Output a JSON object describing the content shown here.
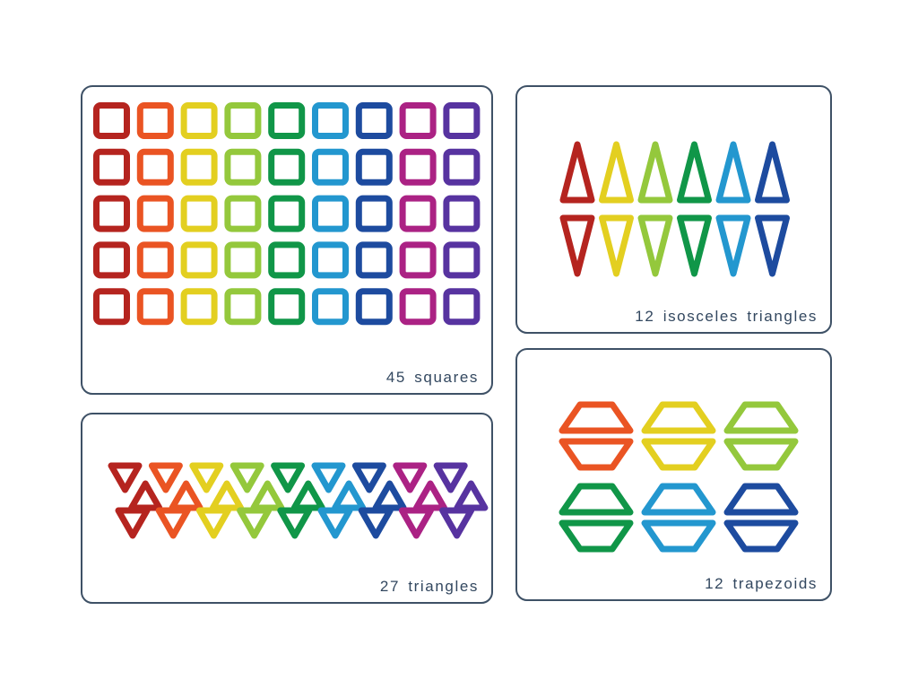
{
  "page": {
    "background": "#ffffff"
  },
  "style": {
    "panel_border_color": "#3e5166",
    "label_color": "#32475f"
  },
  "palette": {
    "red": "#b5241f",
    "orange": "#ea5423",
    "yellow": "#e3cf20",
    "lime": "#94c83c",
    "green": "#109648",
    "sky": "#2397cf",
    "navy": "#1d4b9f",
    "magenta": "#ab2284",
    "purple": "#5733a0"
  },
  "panels": [
    {
      "id": "squares",
      "label": "45 squares",
      "count": 45,
      "shape": "square",
      "grid": {
        "rows": 5,
        "cols": 9,
        "column_colors": [
          "red",
          "orange",
          "yellow",
          "lime",
          "green",
          "sky",
          "navy",
          "magenta",
          "purple"
        ]
      }
    },
    {
      "id": "isosceles",
      "label": "12 isosceles triangles",
      "count": 12,
      "shape": "isosceles-triangle",
      "columns": [
        "red",
        "yellow",
        "lime",
        "green",
        "sky",
        "navy"
      ],
      "per_column": [
        "up",
        "down"
      ]
    },
    {
      "id": "triangles",
      "label": "27 triangles",
      "count": 27,
      "shape": "triangle",
      "strip_colors": [
        "red",
        "orange",
        "yellow",
        "lime",
        "green",
        "sky",
        "navy",
        "magenta",
        "purple"
      ],
      "strip_pattern": "one down-pointing and one up-pointing triangle per color, interlocked",
      "bottom_row_colors": [
        "red",
        "orange",
        "yellow",
        "lime",
        "green",
        "sky",
        "navy",
        "magenta",
        "purple"
      ]
    },
    {
      "id": "trapezoids",
      "label": "12 trapezoids",
      "count": 12,
      "shape": "trapezoid",
      "pairs": [
        "orange",
        "yellow",
        "lime",
        "green",
        "sky",
        "navy"
      ],
      "per_pair": [
        "top",
        "bottom-flipped"
      ],
      "layout_rows": 2,
      "layout_cols": 3
    }
  ]
}
